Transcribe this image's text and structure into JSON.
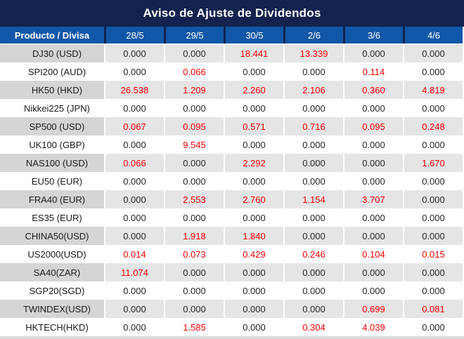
{
  "title": "Aviso de Ajuste de Dividendos",
  "table": {
    "header": {
      "product_label": "Producto / Divisa",
      "dates": [
        "28/5",
        "29/5",
        "30/5",
        "2/6",
        "3/6",
        "4/6"
      ]
    },
    "rows": [
      {
        "label": "DJ30 (USD)",
        "values": [
          "0.000",
          "0.000",
          "18.441",
          "13.339",
          "0.000",
          "0.000"
        ],
        "red": [
          false,
          false,
          true,
          true,
          false,
          false
        ]
      },
      {
        "label": "SPI200 (AUD)",
        "values": [
          "0.000",
          "0.066",
          "0.000",
          "0.000",
          "0.114",
          "0.000"
        ],
        "red": [
          false,
          true,
          false,
          false,
          true,
          false
        ]
      },
      {
        "label": "HK50 (HKD)",
        "values": [
          "26.538",
          "1.209",
          "2.260",
          "2.106",
          "0.360",
          "4.819"
        ],
        "red": [
          true,
          true,
          true,
          true,
          true,
          true
        ]
      },
      {
        "label": "Nikkei225 (JPN)",
        "values": [
          "0.000",
          "0.000",
          "0.000",
          "0.000",
          "0.000",
          "0.000"
        ],
        "red": [
          false,
          false,
          false,
          false,
          false,
          false
        ]
      },
      {
        "label": "SP500 (USD)",
        "values": [
          "0.067",
          "0.095",
          "0.571",
          "0.716",
          "0.095",
          "0.248"
        ],
        "red": [
          true,
          true,
          true,
          true,
          true,
          true
        ]
      },
      {
        "label": "UK100 (GBP)",
        "values": [
          "0.000",
          "9.545",
          "0.000",
          "0.000",
          "0.000",
          "0.000"
        ],
        "red": [
          false,
          true,
          false,
          false,
          false,
          false
        ]
      },
      {
        "label": "NAS100 (USD)",
        "values": [
          "0.066",
          "0.000",
          "2.292",
          "0.000",
          "0.000",
          "1.670"
        ],
        "red": [
          true,
          false,
          true,
          false,
          false,
          true
        ]
      },
      {
        "label": "EU50 (EUR)",
        "values": [
          "0.000",
          "0.000",
          "0.000",
          "0.000",
          "0.000",
          "0.000"
        ],
        "red": [
          false,
          false,
          false,
          false,
          false,
          false
        ]
      },
      {
        "label": "FRA40 (EUR)",
        "values": [
          "0.000",
          "2.553",
          "2.760",
          "1.154",
          "3.707",
          "0.000"
        ],
        "red": [
          false,
          true,
          true,
          true,
          true,
          false
        ]
      },
      {
        "label": "ES35 (EUR)",
        "values": [
          "0.000",
          "0.000",
          "0.000",
          "0.000",
          "0.000",
          "0.000"
        ],
        "red": [
          false,
          false,
          false,
          false,
          false,
          false
        ]
      },
      {
        "label": "CHINA50(USD)",
        "values": [
          "0.000",
          "1.918",
          "1.840",
          "0.000",
          "0.000",
          "0.000"
        ],
        "red": [
          false,
          true,
          true,
          false,
          false,
          false
        ]
      },
      {
        "label": "US2000(USD)",
        "values": [
          "0.014",
          "0.073",
          "0.429",
          "0.246",
          "0.104",
          "0.015"
        ],
        "red": [
          true,
          true,
          true,
          true,
          true,
          true
        ]
      },
      {
        "label": "SA40(ZAR)",
        "values": [
          "11.074",
          "0.000",
          "0.000",
          "0.000",
          "0.000",
          "0.000"
        ],
        "red": [
          true,
          false,
          false,
          false,
          false,
          false
        ]
      },
      {
        "label": "SGP20(SGD)",
        "values": [
          "0.000",
          "0.000",
          "0.000",
          "0.000",
          "0.000",
          "0.000"
        ],
        "red": [
          false,
          false,
          false,
          false,
          false,
          false
        ]
      },
      {
        "label": "TWINDEX(USD)",
        "values": [
          "0.000",
          "0.000",
          "0.000",
          "0.000",
          "0.699",
          "0.081"
        ],
        "red": [
          false,
          false,
          false,
          false,
          true,
          true
        ]
      },
      {
        "label": "HKTECH(HKD)",
        "values": [
          "0.000",
          "1.585",
          "0.000",
          "0.304",
          "4.039",
          "0.000"
        ],
        "red": [
          false,
          true,
          false,
          true,
          true,
          false
        ]
      }
    ]
  },
  "colors": {
    "title_navy": "#13234e",
    "header_blue": "#1157a7",
    "red_value": "#fb0000",
    "black_value": "#262626",
    "gray_label_bg": "#d5d5d5",
    "gray_value_bg": "#e5e5e5"
  }
}
